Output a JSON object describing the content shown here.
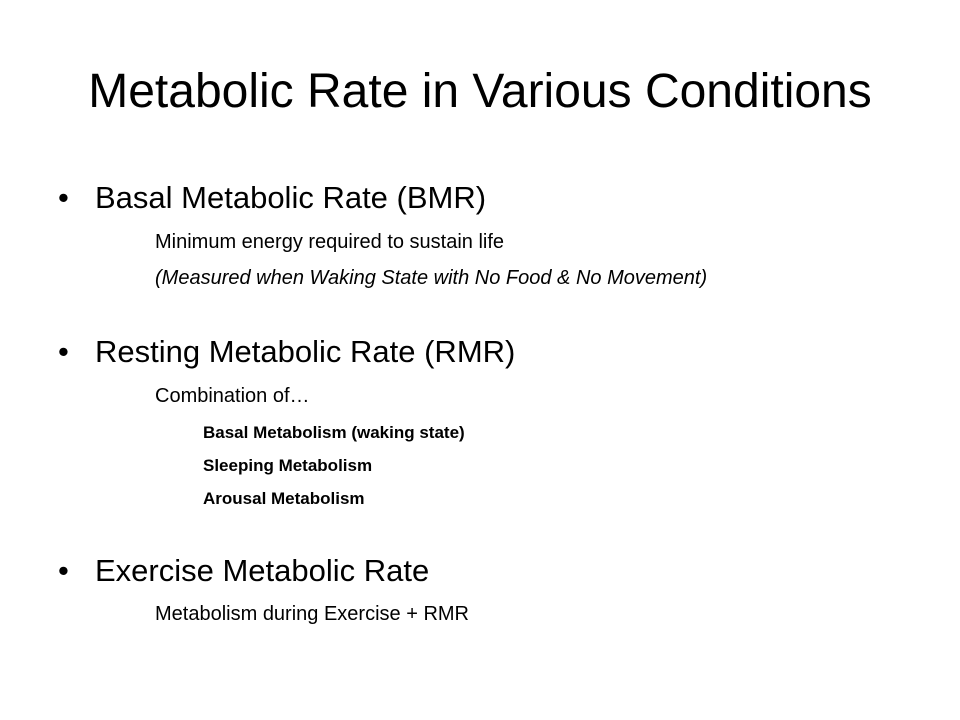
{
  "slide": {
    "title": "Metabolic Rate in Various Conditions",
    "bullet_glyph": "•",
    "sections": [
      {
        "heading": "Basal Metabolic Rate (BMR)",
        "lines": [
          "Minimum energy required to sustain life",
          "(Measured when Waking State with No Food & No Movement)"
        ]
      },
      {
        "heading": "Resting Metabolic Rate (RMR)",
        "lines": [
          "Combination of…"
        ],
        "sublines": [
          "Basal Metabolism (waking state)",
          "Sleeping Metabolism",
          "Arousal Metabolism"
        ]
      },
      {
        "heading": "Exercise Metabolic Rate",
        "lines": [
          "Metabolism during Exercise + RMR"
        ]
      }
    ]
  }
}
